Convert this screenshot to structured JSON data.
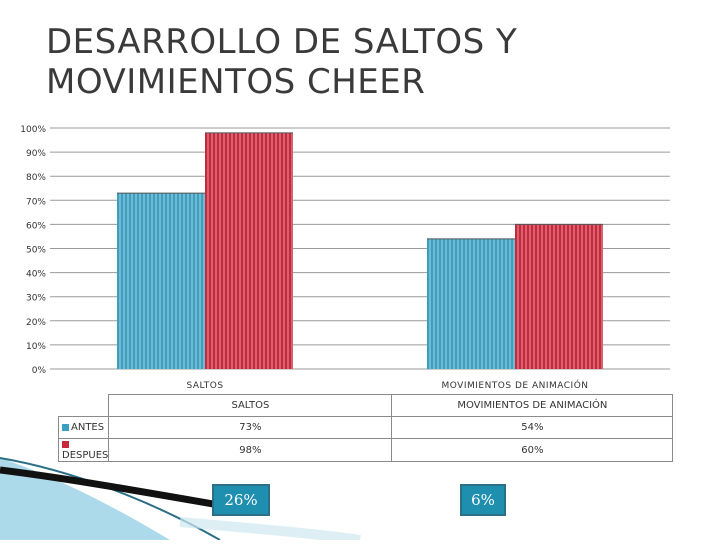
{
  "title": "DESARROLLO DE SALTOS Y\nMOVIMIENTOS CHEER",
  "colors": {
    "antes": "#3a9fc0",
    "despues": "#c8283c",
    "box": "#1f8fb0"
  },
  "table": {
    "columns": [
      "SALTOS",
      "MOVIMIENTOS DE ANIMACIÓN"
    ],
    "rows": [
      {
        "label": "ANTES",
        "values": [
          "73%",
          "54%"
        ]
      },
      {
        "label": "DESPUES",
        "values": [
          "98%",
          "60%"
        ]
      }
    ]
  },
  "differences": [
    "26%",
    "6%"
  ],
  "chart_data": {
    "type": "bar",
    "categories": [
      "SALTOS",
      "MOVIMIENTOS DE ANIMACIÓN"
    ],
    "series": [
      {
        "name": "ANTES",
        "values": [
          73,
          54
        ]
      },
      {
        "name": "DESPUES",
        "values": [
          98,
          60
        ]
      }
    ],
    "ylim": [
      0,
      100
    ],
    "yticks": [
      "0%",
      "10%",
      "20%",
      "30%",
      "40%",
      "50%",
      "60%",
      "70%",
      "80%",
      "90%",
      "100%"
    ],
    "grid": true,
    "legend": "table"
  }
}
